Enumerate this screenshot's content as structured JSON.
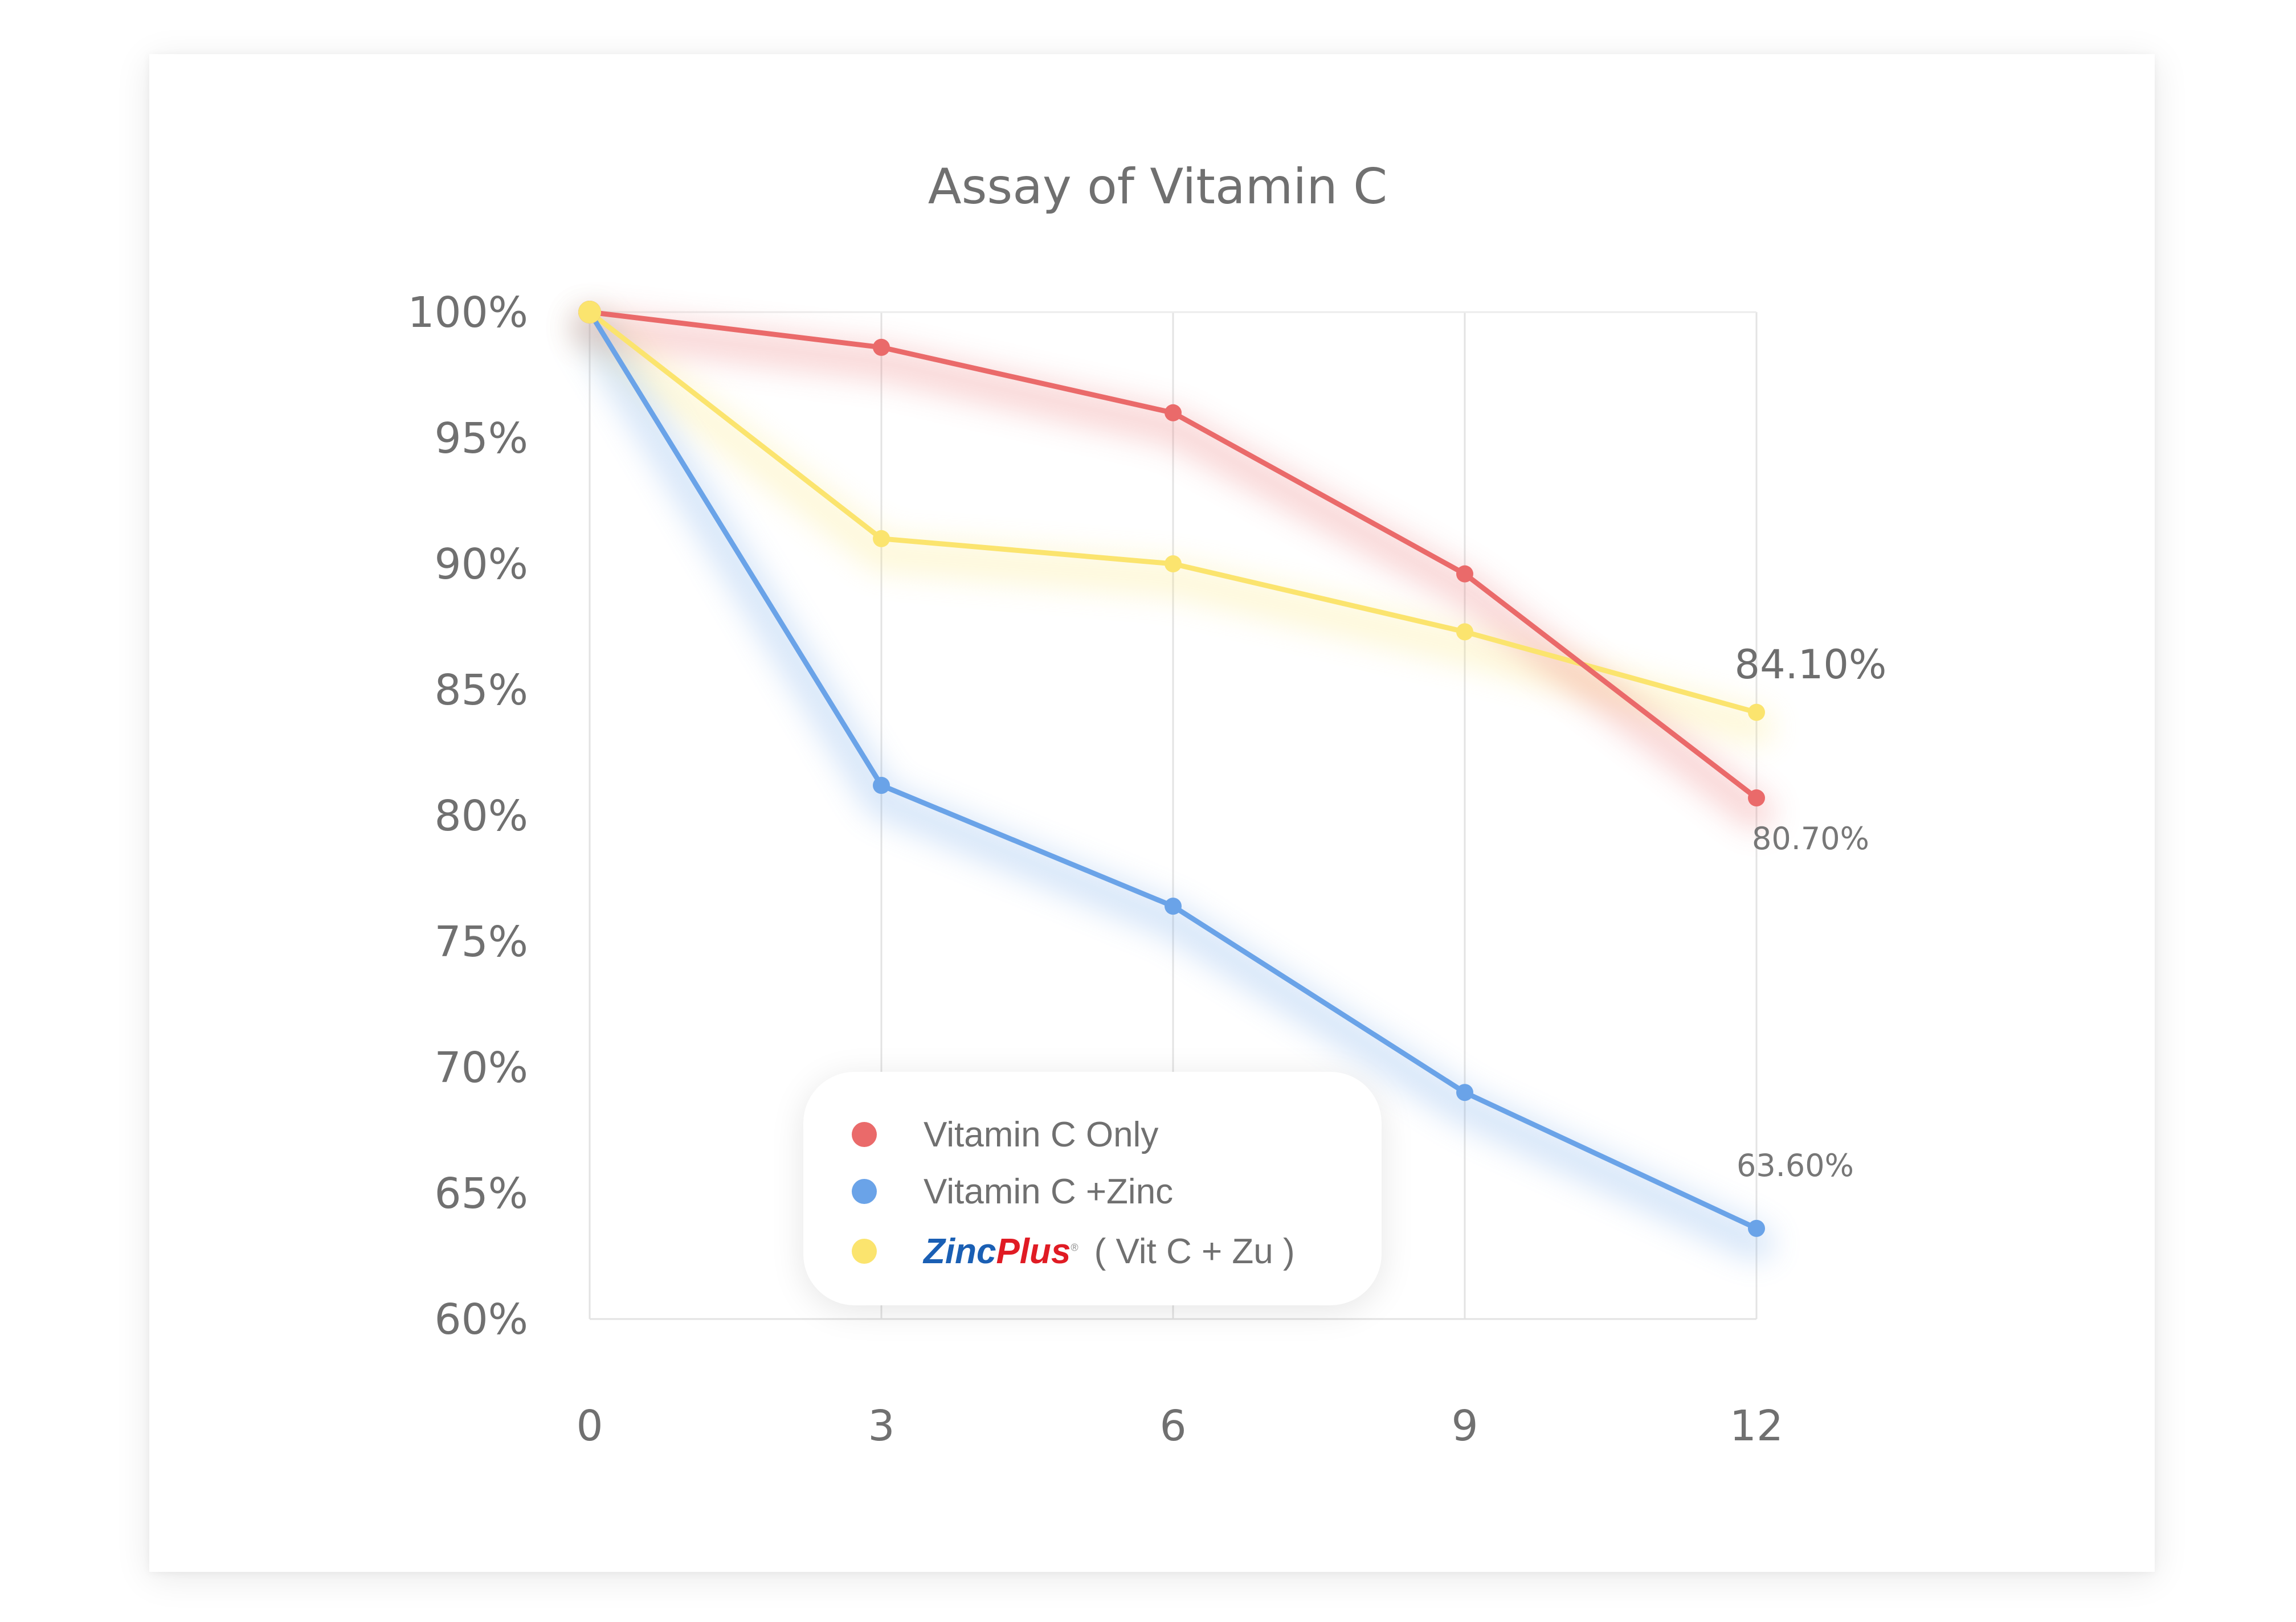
{
  "chart_data": {
    "type": "line",
    "title": "Assay of Vitamin C",
    "x": [
      0,
      3,
      6,
      9,
      12
    ],
    "x_tick_labels": [
      "0",
      "3",
      "6",
      "9",
      "12"
    ],
    "y_tick_labels": [
      "100%",
      "95%",
      "90%",
      "85%",
      "80%",
      "75%",
      "70%",
      "65%",
      "60%"
    ],
    "ylim": [
      60,
      100
    ],
    "xlim": [
      0,
      12
    ],
    "grid": "vertical lines at x ticks",
    "legend_position": "bottom-left inside plot",
    "series": [
      {
        "name": "Vitamin C Only",
        "color": "#ea6a6a",
        "values": [
          100,
          98.6,
          96.0,
          89.6,
          80.7
        ]
      },
      {
        "name": "Vitamin C +Zinc",
        "color": "#6aa3e8",
        "values": [
          100,
          81.2,
          76.4,
          69.0,
          63.6
        ]
      },
      {
        "name": "( Vit C + Zu )",
        "brand": "ZincPlus",
        "color": "#fbe46e",
        "values": [
          100,
          91.0,
          90.0,
          87.3,
          84.1
        ]
      }
    ],
    "annotations": [
      {
        "series": 2,
        "point": 4,
        "text": "84.10%"
      },
      {
        "series": 0,
        "point": 4,
        "text": "80.70%"
      },
      {
        "series": 1,
        "point": 4,
        "text": "63.60%"
      }
    ]
  },
  "legend": {
    "item1": "Vitamin C Only",
    "item2": "Vitamin C +Zinc",
    "item3_brand_a": "Zinc",
    "item3_brand_b": "Plus",
    "item3_reg": "®",
    "item3_text": "( Vit C + Zu )"
  }
}
